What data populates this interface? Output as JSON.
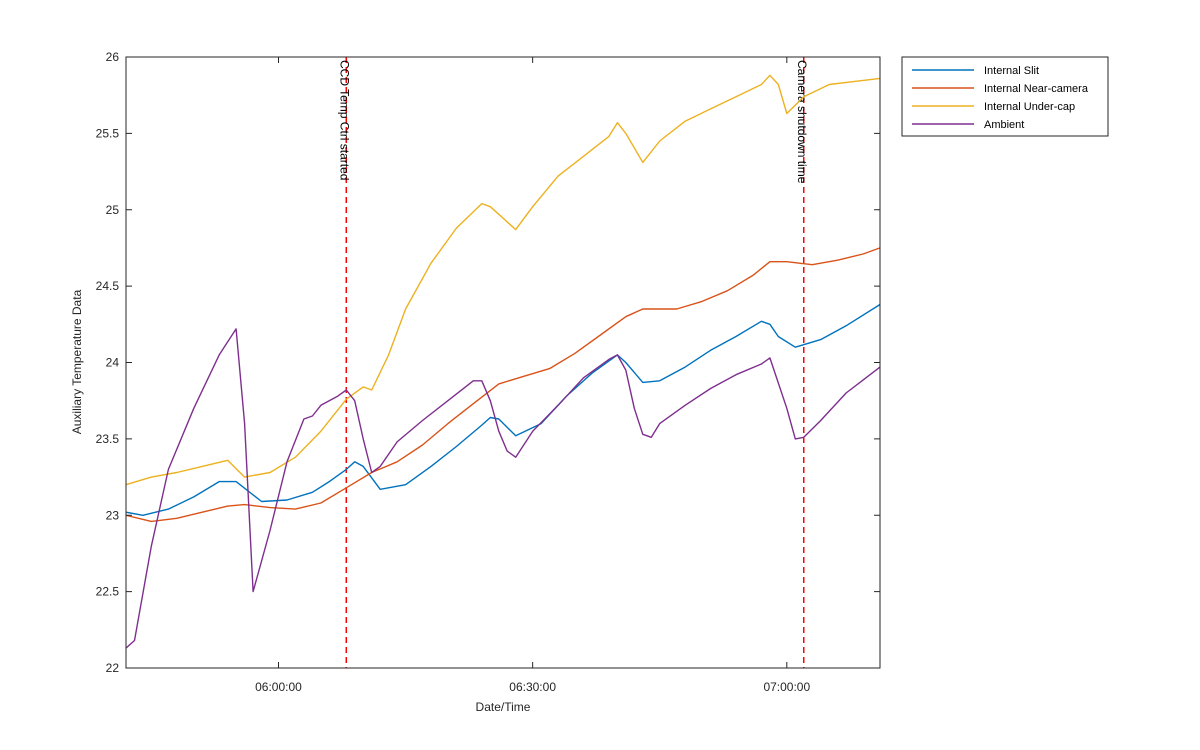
{
  "chart_data": {
    "type": "line",
    "title": "",
    "xlabel": "Date/Time",
    "ylabel": "Auxiliary Temperature Data",
    "x_unit": "time (hh:mm)",
    "xlim": [
      "05:42:00",
      "07:11:00"
    ],
    "ylim": [
      22,
      26
    ],
    "x_ticks": [
      "06:00:00",
      "06:30:00",
      "07:00:00"
    ],
    "y_ticks": [
      "22",
      "22.5",
      "23",
      "23.5",
      "24",
      "24.5",
      "25",
      "25.5",
      "26"
    ],
    "grid": false,
    "legend_position": "outside-top-right",
    "series": [
      {
        "name": "Internal Slit",
        "color": "#0072BD",
        "x": [
          "05:42",
          "05:44",
          "05:47",
          "05:50",
          "05:53",
          "05:55",
          "05:58",
          "06:01",
          "06:04",
          "06:06",
          "06:08",
          "06:09",
          "06:10",
          "06:12",
          "06:15",
          "06:18",
          "06:21",
          "06:24",
          "06:25",
          "06:26",
          "06:28",
          "06:31",
          "06:34",
          "06:37",
          "06:40",
          "06:41",
          "06:43",
          "06:45",
          "06:48",
          "06:51",
          "06:54",
          "06:57",
          "06:58",
          "06:59",
          "07:01",
          "07:04",
          "07:07",
          "07:11"
        ],
        "y": [
          23.02,
          23.0,
          23.04,
          23.12,
          23.22,
          23.22,
          23.09,
          23.1,
          23.15,
          23.22,
          23.3,
          23.35,
          23.32,
          23.17,
          23.2,
          23.32,
          23.45,
          23.59,
          23.64,
          23.63,
          23.52,
          23.6,
          23.78,
          23.93,
          24.05,
          24.0,
          23.87,
          23.88,
          23.97,
          24.08,
          24.17,
          24.27,
          24.25,
          24.17,
          24.1,
          24.15,
          24.24,
          24.38
        ]
      },
      {
        "name": "Internal Near-camera",
        "color": "#D95319",
        "x": [
          "05:42",
          "05:45",
          "05:48",
          "05:51",
          "05:54",
          "05:56",
          "05:59",
          "06:02",
          "06:05",
          "06:08",
          "06:11",
          "06:14",
          "06:17",
          "06:20",
          "06:23",
          "06:26",
          "06:29",
          "06:32",
          "06:35",
          "06:38",
          "06:41",
          "06:43",
          "06:47",
          "06:50",
          "06:53",
          "06:56",
          "06:58",
          "07:00",
          "07:03",
          "07:06",
          "07:09",
          "07:11"
        ],
        "y": [
          23.0,
          22.96,
          22.98,
          23.02,
          23.06,
          23.07,
          23.05,
          23.04,
          23.08,
          23.18,
          23.28,
          23.35,
          23.46,
          23.6,
          23.73,
          23.86,
          23.91,
          23.96,
          24.06,
          24.18,
          24.3,
          24.35,
          24.35,
          24.4,
          24.47,
          24.57,
          24.66,
          24.66,
          24.64,
          24.67,
          24.71,
          24.75
        ]
      },
      {
        "name": "Internal Under-cap",
        "color": "#EDB120",
        "x": [
          "05:42",
          "05:45",
          "05:48",
          "05:51",
          "05:54",
          "05:56",
          "05:59",
          "06:02",
          "06:05",
          "06:08",
          "06:10",
          "06:11",
          "06:13",
          "06:15",
          "06:18",
          "06:21",
          "06:24",
          "06:25",
          "06:26",
          "06:28",
          "06:30",
          "06:33",
          "06:36",
          "06:39",
          "06:40",
          "06:41",
          "06:43",
          "06:45",
          "06:48",
          "06:51",
          "06:54",
          "06:57",
          "06:58",
          "06:59",
          "07:00",
          "07:02",
          "07:05",
          "07:08",
          "07:11"
        ],
        "y": [
          23.2,
          23.25,
          23.28,
          23.32,
          23.36,
          23.25,
          23.28,
          23.38,
          23.55,
          23.76,
          23.84,
          23.82,
          24.05,
          24.35,
          24.65,
          24.88,
          25.04,
          25.02,
          24.97,
          24.87,
          25.02,
          25.22,
          25.35,
          25.48,
          25.57,
          25.5,
          25.31,
          25.45,
          25.58,
          25.66,
          25.74,
          25.82,
          25.88,
          25.82,
          25.63,
          25.74,
          25.82,
          25.84,
          25.86
        ]
      },
      {
        "name": "Ambient",
        "color": "#7E2F8E",
        "x": [
          "05:42",
          "05:43",
          "05:45",
          "05:47",
          "05:50",
          "05:53",
          "05:55",
          "05:56",
          "05:57",
          "05:59",
          "06:01",
          "06:03",
          "06:04",
          "06:05",
          "06:07",
          "06:08",
          "06:09",
          "06:10",
          "06:11",
          "06:12",
          "06:14",
          "06:17",
          "06:20",
          "06:23",
          "06:24",
          "06:25",
          "06:26",
          "06:27",
          "06:28",
          "06:30",
          "06:33",
          "06:36",
          "06:39",
          "06:40",
          "06:41",
          "06:42",
          "06:43",
          "06:44",
          "06:45",
          "06:48",
          "06:51",
          "06:54",
          "06:57",
          "06:58",
          "07:00",
          "07:01",
          "07:02",
          "07:04",
          "07:07",
          "07:11"
        ],
        "y": [
          22.13,
          22.18,
          22.8,
          23.3,
          23.7,
          24.05,
          24.22,
          23.6,
          22.5,
          22.9,
          23.35,
          23.63,
          23.65,
          23.72,
          23.78,
          23.82,
          23.75,
          23.5,
          23.28,
          23.32,
          23.48,
          23.62,
          23.75,
          23.88,
          23.88,
          23.75,
          23.55,
          23.42,
          23.38,
          23.55,
          23.72,
          23.9,
          24.02,
          24.05,
          23.95,
          23.7,
          23.53,
          23.51,
          23.6,
          23.72,
          23.83,
          23.92,
          23.99,
          24.03,
          23.7,
          23.5,
          23.51,
          23.62,
          23.8,
          23.97
        ]
      }
    ],
    "annotations": [
      {
        "x": "06:08",
        "text": "CCD Temp Ctrl started",
        "color": "#FF0000"
      },
      {
        "x": "07:02",
        "text": "Camera shutdown time",
        "color": "#FF0000"
      }
    ]
  }
}
